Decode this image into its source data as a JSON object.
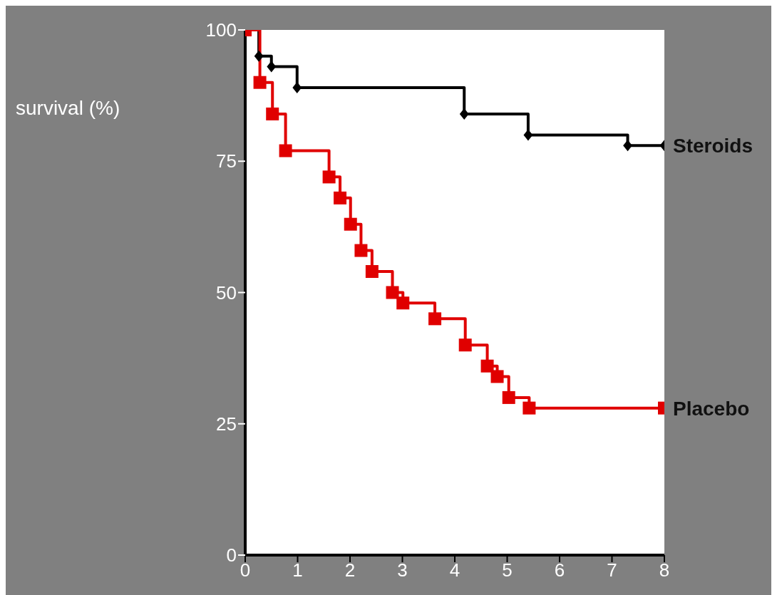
{
  "chart_data": {
    "type": "step",
    "ylabel": "survival (%)",
    "series": [
      {
        "name": "Steroids",
        "color": "#000000",
        "marker": "diamond",
        "x": [
          0,
          0.26,
          0.5,
          0.99,
          4.18,
          5.4,
          7.3,
          8
        ],
        "values": [
          100,
          95,
          93,
          89,
          84,
          80,
          78,
          78
        ]
      },
      {
        "name": "Placebo",
        "color": "#e00000",
        "marker": "square",
        "x": [
          0,
          0.28,
          0.52,
          0.77,
          1.6,
          1.81,
          2.01,
          2.21,
          2.42,
          2.81,
          3.01,
          3.62,
          4.2,
          4.62,
          4.81,
          5.03,
          5.42,
          8
        ],
        "values": [
          100,
          90,
          84,
          77,
          72,
          68,
          63,
          58,
          54,
          50,
          48,
          45,
          40,
          36,
          34,
          30,
          28,
          28
        ]
      }
    ],
    "xlim": [
      0,
      8
    ],
    "xticks": [
      0,
      1,
      2,
      3,
      4,
      5,
      6,
      7,
      8
    ],
    "ylim": [
      0,
      100
    ],
    "yticks": [
      0,
      25,
      50,
      75,
      100
    ],
    "grid": false,
    "legend": false
  }
}
